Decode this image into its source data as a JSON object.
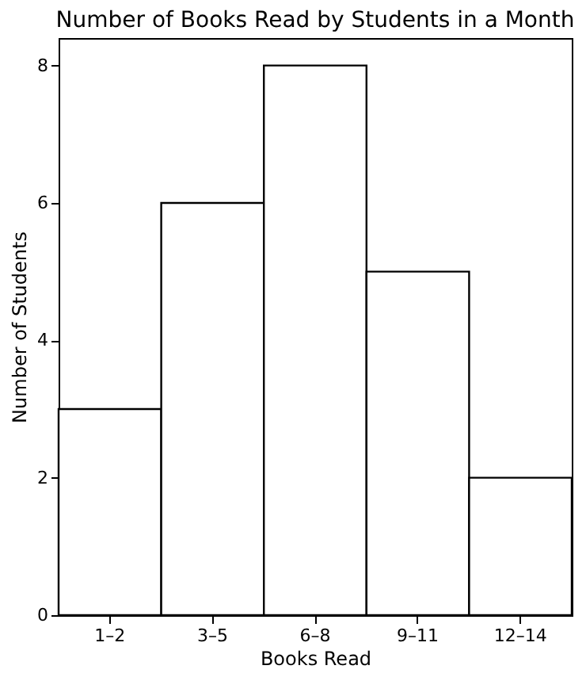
{
  "chart_data": {
    "type": "bar",
    "title": "Number of Books Read by Students in a Month",
    "xlabel": "Books Read",
    "ylabel": "Number of Students",
    "categories": [
      "1–2",
      "3–5",
      "6–8",
      "9–11",
      "12–14"
    ],
    "values": [
      3,
      6,
      8,
      5,
      2
    ],
    "color": "#ffffff",
    "ylim": [
      0,
      8.4
    ],
    "yticks": [
      0,
      2,
      4,
      6,
      8
    ]
  }
}
